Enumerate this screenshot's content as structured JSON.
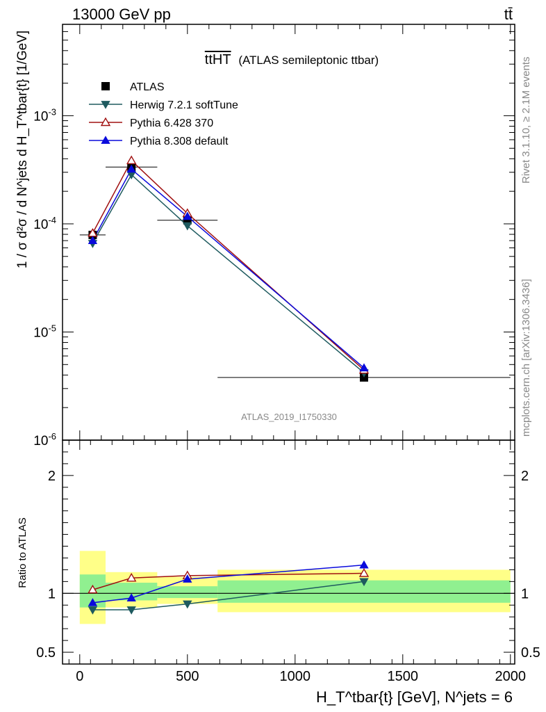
{
  "header": {
    "left": "13000 GeV pp",
    "right": "tt̄"
  },
  "side_text": {
    "rivet": "Rivet 3.1.10, ≥ 2.1M events",
    "mcplots": "mcplots.cern.ch [arXiv:1306.3436]"
  },
  "chart_data": [
    {
      "type": "line",
      "title": "(ATLAS semileptonic ttbar)",
      "title_prefix": "ttHT",
      "ylabel": "1 / σ d²σ / d N^jets d H_T^tbar{t} [1/GeV]",
      "xlabel": "H_T^tbar{t} [GeV], N^jets = 6",
      "yscale": "log",
      "ylim": [
        1e-06,
        0.007
      ],
      "xlim": [
        -80,
        2020
      ],
      "yticks": [
        "10^-6",
        "10^-5",
        "10^-4",
        "10^-3"
      ],
      "watermark": "ATLAS_2019_I1750330",
      "legend_position": "top-left",
      "series": [
        {
          "name": "ATLAS",
          "color": "#000000",
          "marker": "square",
          "x": [
            60,
            240,
            500,
            1320
          ],
          "y": [
            7.9e-05,
            0.000335,
            0.000108,
            3.8e-06
          ],
          "xerr": [
            60,
            120,
            140,
            680
          ]
        },
        {
          "name": "Herwig 7.2.1 softTune",
          "color": "#1e5a5f",
          "marker": "triangle-down",
          "x": [
            60,
            240,
            500,
            1320
          ],
          "y": [
            6.6e-05,
            0.000285,
            9.6e-05,
            4.2e-06
          ]
        },
        {
          "name": "Pythia 6.428 370",
          "color": "#a01010",
          "marker": "triangle-up-open",
          "x": [
            60,
            240,
            500,
            1320
          ],
          "y": [
            8.2e-05,
            0.000385,
            0.000125,
            4.45e-06
          ]
        },
        {
          "name": "Pythia 8.308 default",
          "color": "#0a0adc",
          "marker": "triangle-up",
          "x": [
            60,
            240,
            500,
            1320
          ],
          "y": [
            7e-05,
            0.00032,
            0.000117,
            4.65e-06
          ]
        }
      ]
    },
    {
      "type": "line",
      "ylabel": "Ratio to ATLAS",
      "xlabel": "H_T^tbar{t} [GeV], N^jets = 6",
      "xlim": [
        -80,
        2020
      ],
      "ylim": [
        0.4,
        2.3
      ],
      "yticks": [
        0.5,
        1,
        2
      ],
      "xticks": [
        0,
        500,
        1000,
        1500,
        2000
      ],
      "bands": {
        "bins": [
          [
            0,
            120
          ],
          [
            120,
            360
          ],
          [
            360,
            640
          ],
          [
            640,
            2000
          ]
        ],
        "yellow": [
          [
            0.74,
            1.36
          ],
          [
            0.88,
            1.18
          ],
          [
            0.91,
            1.14
          ],
          [
            0.84,
            1.2
          ]
        ],
        "green": [
          [
            0.88,
            1.16
          ],
          [
            0.94,
            1.09
          ],
          [
            0.96,
            1.06
          ],
          [
            0.92,
            1.11
          ]
        ],
        "yellow_color": "#ffff88",
        "green_color": "#90f090"
      },
      "series": [
        {
          "name": "Herwig 7.2.1 softTune",
          "color": "#1e5a5f",
          "marker": "triangle-down",
          "x": [
            60,
            240,
            500,
            1320
          ],
          "y": [
            0.86,
            0.86,
            0.91,
            1.1
          ]
        },
        {
          "name": "Pythia 6.428 370",
          "color": "#a01010",
          "marker": "triangle-up-open",
          "x": [
            60,
            240,
            500,
            1320
          ],
          "y": [
            1.03,
            1.13,
            1.15,
            1.17
          ]
        },
        {
          "name": "Pythia 8.308 default",
          "color": "#0a0adc",
          "marker": "triangle-up",
          "x": [
            60,
            240,
            500,
            1320
          ],
          "y": [
            0.92,
            0.96,
            1.12,
            1.24
          ],
          "yerr": [
            0,
            0,
            0,
            0.03
          ]
        }
      ]
    }
  ]
}
